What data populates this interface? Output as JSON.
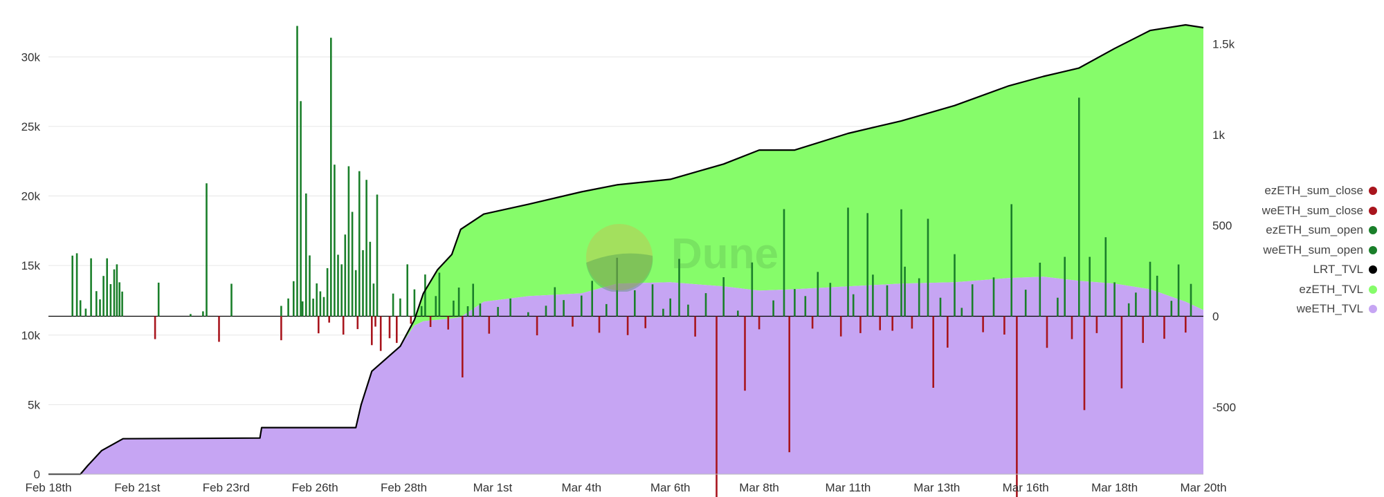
{
  "watermark": "Dune",
  "chart_data": {
    "type": "bar",
    "x_ticks": [
      "Feb 18th",
      "Feb 21st",
      "Feb 23rd",
      "Feb 26th",
      "Feb 28th",
      "Mar 1st",
      "Mar 4th",
      "Mar 6th",
      "Mar 8th",
      "Mar 11th",
      "Mar 13th",
      "Mar 16th",
      "Mar 18th",
      "Mar 20th"
    ],
    "y_left": {
      "range": [
        0,
        32500
      ],
      "ticks": [
        0,
        5000,
        10000,
        15000,
        20000,
        25000,
        30000
      ],
      "tick_labels": [
        "0",
        "5k",
        "10k",
        "15k",
        "20k",
        "25k",
        "30k"
      ]
    },
    "y_right": {
      "range": [
        -870,
        1620
      ],
      "ticks": [
        -500,
        0,
        500,
        1000,
        1500
      ],
      "tick_labels": [
        "-500",
        "0",
        "500",
        "1k",
        "1.5k"
      ]
    },
    "grid": true,
    "legend_position": "right",
    "series": [
      {
        "name": "ezETH_sum_close",
        "color": "#a8151d",
        "axis": "right"
      },
      {
        "name": "weETH_sum_close",
        "color": "#a8151d",
        "axis": "right"
      },
      {
        "name": "ezETH_sum_open",
        "color": "#1a7f2a",
        "axis": "right"
      },
      {
        "name": "weETH_sum_open",
        "color": "#1a7f2a",
        "axis": "right"
      },
      {
        "name": "LRT_TVL",
        "color": "#000000",
        "axis": "left"
      },
      {
        "name": "ezETH_TVL",
        "color": "#86fc6a",
        "axis": "left"
      },
      {
        "name": "weETH_TVL",
        "color": "#c6a5f3",
        "axis": "left"
      }
    ],
    "tvl_points": [
      {
        "d": 0,
        "weeth": 0,
        "ezeth": 0
      },
      {
        "d": 1.8,
        "weeth": 0,
        "ezeth": 0
      },
      {
        "d": 2.2,
        "weeth": 600,
        "ezeth": 0
      },
      {
        "d": 3.0,
        "weeth": 1700,
        "ezeth": 0
      },
      {
        "d": 4.2,
        "weeth": 2550,
        "ezeth": 0
      },
      {
        "d": 11.9,
        "weeth": 2600,
        "ezeth": 0
      },
      {
        "d": 12.0,
        "weeth": 3350,
        "ezeth": 0
      },
      {
        "d": 17.3,
        "weeth": 3350,
        "ezeth": 0
      },
      {
        "d": 17.6,
        "weeth": 5000,
        "ezeth": 0
      },
      {
        "d": 18.2,
        "weeth": 7400,
        "ezeth": 0
      },
      {
        "d": 19.8,
        "weeth": 9200,
        "ezeth": 0
      },
      {
        "d": 20.6,
        "weeth": 10700,
        "ezeth": 400
      },
      {
        "d": 21.1,
        "weeth": 11000,
        "ezeth": 2000
      },
      {
        "d": 21.9,
        "weeth": 11100,
        "ezeth": 3600
      },
      {
        "d": 22.7,
        "weeth": 11200,
        "ezeth": 4600
      },
      {
        "d": 23.2,
        "weeth": 11300,
        "ezeth": 6300
      },
      {
        "d": 24.5,
        "weeth": 12400,
        "ezeth": 6300
      },
      {
        "d": 27.0,
        "weeth": 12800,
        "ezeth": 6600
      },
      {
        "d": 30.0,
        "weeth": 13000,
        "ezeth": 7300
      },
      {
        "d": 32.0,
        "weeth": 13700,
        "ezeth": 7100
      },
      {
        "d": 35.0,
        "weeth": 13800,
        "ezeth": 7400
      },
      {
        "d": 38.0,
        "weeth": 13500,
        "ezeth": 8800
      },
      {
        "d": 40.0,
        "weeth": 13200,
        "ezeth": 10100
      },
      {
        "d": 42.0,
        "weeth": 13300,
        "ezeth": 10000
      },
      {
        "d": 45.0,
        "weeth": 13500,
        "ezeth": 11000
      },
      {
        "d": 48.0,
        "weeth": 13700,
        "ezeth": 11700
      },
      {
        "d": 51.0,
        "weeth": 13800,
        "ezeth": 12700
      },
      {
        "d": 54.0,
        "weeth": 14100,
        "ezeth": 13800
      },
      {
        "d": 56.0,
        "weeth": 14200,
        "ezeth": 14400
      },
      {
        "d": 58.0,
        "weeth": 13900,
        "ezeth": 15300
      },
      {
        "d": 60.0,
        "weeth": 13700,
        "ezeth": 16900
      },
      {
        "d": 62.0,
        "weeth": 13300,
        "ezeth": 18600
      },
      {
        "d": 64.0,
        "weeth": 12400,
        "ezeth": 19900
      },
      {
        "d": 65.0,
        "weeth": 11800,
        "ezeth": 20300
      }
    ],
    "flow_points": [
      {
        "d": 1.35,
        "v": 334
      },
      {
        "d": 1.6,
        "v": 347
      },
      {
        "d": 1.8,
        "v": 88
      },
      {
        "d": 2.1,
        "v": 42
      },
      {
        "d": 2.4,
        "v": 319
      },
      {
        "d": 2.7,
        "v": 138
      },
      {
        "d": 2.9,
        "v": 93
      },
      {
        "d": 3.1,
        "v": 222
      },
      {
        "d": 3.3,
        "v": 319
      },
      {
        "d": 3.5,
        "v": 177
      },
      {
        "d": 3.7,
        "v": 258
      },
      {
        "d": 3.85,
        "v": 286
      },
      {
        "d": 4.0,
        "v": 187
      },
      {
        "d": 4.15,
        "v": 136
      },
      {
        "d": 6.0,
        "v": -126
      },
      {
        "d": 6.2,
        "v": 185
      },
      {
        "d": 8.0,
        "v": 12
      },
      {
        "d": 8.7,
        "v": 27
      },
      {
        "d": 8.9,
        "v": 732
      },
      {
        "d": 9.6,
        "v": -141
      },
      {
        "d": 10.3,
        "v": 179
      },
      {
        "d": 13.1,
        "v": 57
      },
      {
        "d": 13.1,
        "v": -132
      },
      {
        "d": 13.5,
        "v": 98
      },
      {
        "d": 13.8,
        "v": 193
      },
      {
        "d": 14.0,
        "v": 1599
      },
      {
        "d": 14.2,
        "v": 1185
      },
      {
        "d": 14.3,
        "v": 82
      },
      {
        "d": 14.5,
        "v": 676
      },
      {
        "d": 14.7,
        "v": 335
      },
      {
        "d": 14.9,
        "v": 97
      },
      {
        "d": 15.1,
        "v": 181
      },
      {
        "d": 15.3,
        "v": 137
      },
      {
        "d": 15.5,
        "v": 106
      },
      {
        "d": 15.7,
        "v": 265
      },
      {
        "d": 15.9,
        "v": 1534
      },
      {
        "d": 16.1,
        "v": 835
      },
      {
        "d": 16.3,
        "v": 339
      },
      {
        "d": 16.5,
        "v": 286
      },
      {
        "d": 16.7,
        "v": 450
      },
      {
        "d": 16.9,
        "v": 826
      },
      {
        "d": 17.1,
        "v": 575
      },
      {
        "d": 17.3,
        "v": 254
      },
      {
        "d": 17.5,
        "v": 799
      },
      {
        "d": 17.7,
        "v": 364
      },
      {
        "d": 17.9,
        "v": 751
      },
      {
        "d": 18.1,
        "v": 410
      },
      {
        "d": 18.3,
        "v": 180
      },
      {
        "d": 18.5,
        "v": 670
      },
      {
        "d": 15.2,
        "v": -94
      },
      {
        "d": 15.8,
        "v": -35
      },
      {
        "d": 16.6,
        "v": -101
      },
      {
        "d": 17.4,
        "v": -71
      },
      {
        "d": 18.2,
        "v": -159
      },
      {
        "d": 18.4,
        "v": -57
      },
      {
        "d": 18.7,
        "v": -191
      },
      {
        "d": 19.2,
        "v": -121
      },
      {
        "d": 19.4,
        "v": 125
      },
      {
        "d": 19.6,
        "v": -147
      },
      {
        "d": 19.8,
        "v": 98
      },
      {
        "d": 20.2,
        "v": 286
      },
      {
        "d": 20.4,
        "v": -41
      },
      {
        "d": 20.6,
        "v": 148
      },
      {
        "d": 21.0,
        "v": 56
      },
      {
        "d": 21.2,
        "v": 230
      },
      {
        "d": 21.5,
        "v": -59
      },
      {
        "d": 21.8,
        "v": 111
      },
      {
        "d": 22.0,
        "v": 240
      },
      {
        "d": 22.5,
        "v": -73
      },
      {
        "d": 22.8,
        "v": 86
      },
      {
        "d": 23.1,
        "v": 158
      },
      {
        "d": 23.3,
        "v": -337
      },
      {
        "d": 23.6,
        "v": 55
      },
      {
        "d": 23.9,
        "v": 179
      },
      {
        "d": 24.3,
        "v": 70
      },
      {
        "d": 24.8,
        "v": -96
      },
      {
        "d": 25.3,
        "v": 51
      },
      {
        "d": 26.0,
        "v": 98
      },
      {
        "d": 27.0,
        "v": 22
      },
      {
        "d": 27.5,
        "v": -105
      },
      {
        "d": 28.0,
        "v": 58
      },
      {
        "d": 28.5,
        "v": 160
      },
      {
        "d": 29.0,
        "v": 89
      },
      {
        "d": 29.5,
        "v": -57
      },
      {
        "d": 30.0,
        "v": 114
      },
      {
        "d": 30.6,
        "v": 195
      },
      {
        "d": 31.0,
        "v": -91
      },
      {
        "d": 31.4,
        "v": 67
      },
      {
        "d": 32.0,
        "v": 322
      },
      {
        "d": 32.6,
        "v": -104
      },
      {
        "d": 33.0,
        "v": 143
      },
      {
        "d": 33.6,
        "v": -66
      },
      {
        "d": 34.0,
        "v": 176
      },
      {
        "d": 34.6,
        "v": 41
      },
      {
        "d": 35.0,
        "v": 98
      },
      {
        "d": 35.5,
        "v": 316
      },
      {
        "d": 36.0,
        "v": 64
      },
      {
        "d": 36.4,
        "v": -112
      },
      {
        "d": 37.0,
        "v": 127
      },
      {
        "d": 37.6,
        "v": -1000
      },
      {
        "d": 38.0,
        "v": 215
      },
      {
        "d": 38.8,
        "v": 31
      },
      {
        "d": 39.2,
        "v": -410
      },
      {
        "d": 39.6,
        "v": 296
      },
      {
        "d": 40.0,
        "v": -72
      },
      {
        "d": 40.8,
        "v": 87
      },
      {
        "d": 41.4,
        "v": 590
      },
      {
        "d": 41.7,
        "v": -749
      },
      {
        "d": 42.0,
        "v": 150
      },
      {
        "d": 42.6,
        "v": 111
      },
      {
        "d": 43.0,
        "v": -68
      },
      {
        "d": 43.3,
        "v": 244
      },
      {
        "d": 44.0,
        "v": 184
      },
      {
        "d": 44.6,
        "v": -111
      },
      {
        "d": 45.0,
        "v": 598
      },
      {
        "d": 45.3,
        "v": 121
      },
      {
        "d": 45.7,
        "v": -93
      },
      {
        "d": 46.1,
        "v": 568
      },
      {
        "d": 46.4,
        "v": 229
      },
      {
        "d": 46.8,
        "v": -77
      },
      {
        "d": 47.2,
        "v": 170
      },
      {
        "d": 47.5,
        "v": -80
      },
      {
        "d": 48.0,
        "v": 589
      },
      {
        "d": 48.2,
        "v": 273
      },
      {
        "d": 48.6,
        "v": -68
      },
      {
        "d": 49.0,
        "v": 209
      },
      {
        "d": 49.5,
        "v": 537
      },
      {
        "d": 49.8,
        "v": -394
      },
      {
        "d": 50.2,
        "v": 102
      },
      {
        "d": 50.6,
        "v": -173
      },
      {
        "d": 51.0,
        "v": 342
      },
      {
        "d": 51.4,
        "v": 46
      },
      {
        "d": 52.0,
        "v": 176
      },
      {
        "d": 52.6,
        "v": -88
      },
      {
        "d": 53.2,
        "v": 214
      },
      {
        "d": 53.8,
        "v": -101
      },
      {
        "d": 54.2,
        "v": 617
      },
      {
        "d": 54.5,
        "v": -1017
      },
      {
        "d": 55.0,
        "v": 146
      },
      {
        "d": 55.8,
        "v": 295
      },
      {
        "d": 56.2,
        "v": -174
      },
      {
        "d": 56.8,
        "v": 102
      },
      {
        "d": 57.2,
        "v": 327
      },
      {
        "d": 57.6,
        "v": -126
      },
      {
        "d": 58.0,
        "v": 1204
      },
      {
        "d": 58.3,
        "v": -517
      },
      {
        "d": 58.6,
        "v": 327
      },
      {
        "d": 59.0,
        "v": -93
      },
      {
        "d": 59.5,
        "v": 435
      },
      {
        "d": 60.0,
        "v": 187
      },
      {
        "d": 60.4,
        "v": -397
      },
      {
        "d": 60.8,
        "v": 71
      },
      {
        "d": 61.2,
        "v": 130
      },
      {
        "d": 61.6,
        "v": -147
      },
      {
        "d": 62.0,
        "v": 300
      },
      {
        "d": 62.4,
        "v": 223
      },
      {
        "d": 62.8,
        "v": -124
      },
      {
        "d": 63.2,
        "v": 85
      },
      {
        "d": 63.6,
        "v": 285
      },
      {
        "d": 64.0,
        "v": -90
      },
      {
        "d": 64.3,
        "v": 178
      }
    ]
  }
}
